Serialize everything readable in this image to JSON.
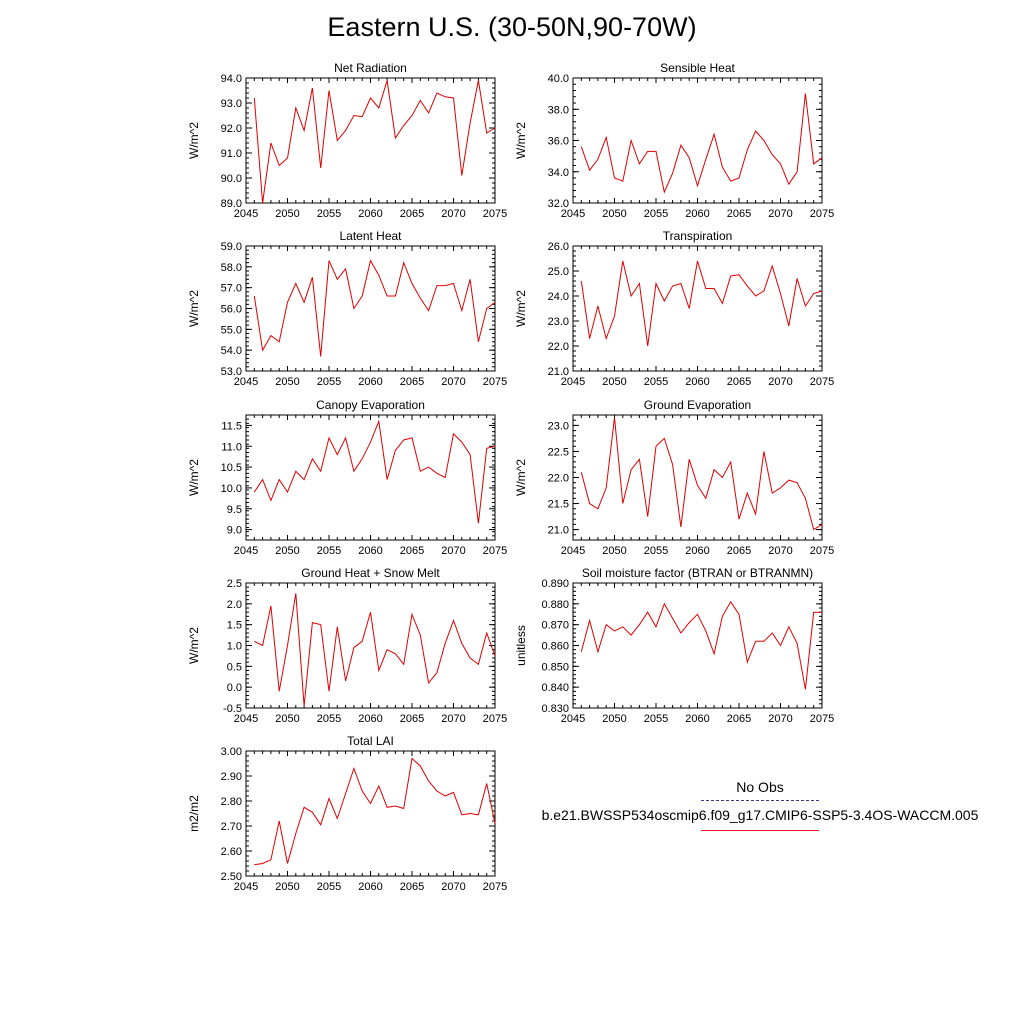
{
  "figure": {
    "title": "Eastern U.S. (30-50N,90-70W)",
    "line_color": "#e00000",
    "legend": {
      "obs_label": "No Obs",
      "obs_color": "#3a3a8c",
      "case_label": "b.e21.BWSSP534oscmip6.f09_g17.CMIP6-SSP5-3.4OS-WACCM.005",
      "case_color": "#e02020"
    }
  },
  "chart_data": [
    {
      "type": "line",
      "title": "Net Radiation",
      "ylabel": "W/m^2",
      "xlim": [
        2045,
        2075
      ],
      "ylim": [
        89.0,
        94.0
      ],
      "x_ticks": [
        2045,
        2050,
        2055,
        2060,
        2065,
        2070,
        2075
      ],
      "x_tick_labels": [
        "2045",
        "2050",
        "2055",
        "2060",
        "2065",
        "2070",
        "2075"
      ],
      "y_ticks": [
        89,
        90,
        91,
        92,
        93,
        94
      ],
      "y_tick_labels": [
        "89.0",
        "90.0",
        "91.0",
        "92.0",
        "93.0",
        "94.0"
      ],
      "series": [
        {
          "x": [
            2046,
            2047,
            2048,
            2049,
            2050,
            2051,
            2052,
            2053,
            2054,
            2055,
            2056,
            2057,
            2058,
            2059,
            2060,
            2061,
            2062,
            2063,
            2064,
            2065,
            2066,
            2067,
            2068,
            2069,
            2070,
            2071,
            2072,
            2073,
            2074,
            2075
          ],
          "values": [
            93.2,
            89.0,
            91.4,
            90.5,
            90.8,
            92.8,
            91.9,
            93.6,
            90.4,
            93.5,
            91.5,
            91.9,
            92.5,
            92.45,
            93.2,
            92.8,
            93.9,
            91.6,
            92.1,
            92.5,
            93.1,
            92.6,
            93.4,
            93.25,
            93.2,
            90.1,
            92.2,
            93.9,
            91.8,
            92.0
          ]
        }
      ]
    },
    {
      "type": "line",
      "title": "Sensible Heat",
      "ylabel": "W/m^2",
      "xlim": [
        2045,
        2075
      ],
      "ylim": [
        32.0,
        40.0
      ],
      "x_ticks": [
        2045,
        2050,
        2055,
        2060,
        2065,
        2070,
        2075
      ],
      "x_tick_labels": [
        "2045",
        "2050",
        "2055",
        "2060",
        "2065",
        "2070",
        "2075"
      ],
      "y_ticks": [
        32,
        34,
        36,
        38,
        40
      ],
      "y_tick_labels": [
        "32.0",
        "34.0",
        "36.0",
        "38.0",
        "40.0"
      ],
      "series": [
        {
          "x": [
            2046,
            2047,
            2048,
            2049,
            2050,
            2051,
            2052,
            2053,
            2054,
            2055,
            2056,
            2057,
            2058,
            2059,
            2060,
            2061,
            2062,
            2063,
            2064,
            2065,
            2066,
            2067,
            2068,
            2069,
            2070,
            2071,
            2072,
            2073,
            2074,
            2075
          ],
          "values": [
            35.6,
            34.1,
            34.8,
            36.2,
            33.6,
            33.4,
            36.0,
            34.5,
            35.3,
            35.3,
            32.7,
            33.9,
            35.7,
            34.9,
            33.1,
            34.8,
            36.4,
            34.3,
            33.4,
            33.6,
            35.4,
            36.6,
            36.0,
            35.1,
            34.5,
            33.2,
            34.0,
            39.0,
            34.5,
            34.9
          ]
        }
      ]
    },
    {
      "type": "line",
      "title": "Latent Heat",
      "ylabel": "W/m^2",
      "xlim": [
        2045,
        2075
      ],
      "ylim": [
        53.0,
        59.0
      ],
      "x_ticks": [
        2045,
        2050,
        2055,
        2060,
        2065,
        2070,
        2075
      ],
      "x_tick_labels": [
        "2045",
        "2050",
        "2055",
        "2060",
        "2065",
        "2070",
        "2075"
      ],
      "y_ticks": [
        53,
        54,
        55,
        56,
        57,
        58,
        59
      ],
      "y_tick_labels": [
        "53.0",
        "54.0",
        "55.0",
        "56.0",
        "57.0",
        "58.0",
        "59.0"
      ],
      "series": [
        {
          "x": [
            2046,
            2047,
            2048,
            2049,
            2050,
            2051,
            2052,
            2053,
            2054,
            2055,
            2056,
            2057,
            2058,
            2059,
            2060,
            2061,
            2062,
            2063,
            2064,
            2065,
            2066,
            2067,
            2068,
            2069,
            2070,
            2071,
            2072,
            2073,
            2074,
            2075
          ],
          "values": [
            56.6,
            54.0,
            54.7,
            54.4,
            56.3,
            57.2,
            56.3,
            57.5,
            53.7,
            58.3,
            57.4,
            57.9,
            56.0,
            56.6,
            58.3,
            57.6,
            56.6,
            56.6,
            58.2,
            57.2,
            56.5,
            55.9,
            57.1,
            57.1,
            57.2,
            55.9,
            57.4,
            54.4,
            56.0,
            56.3
          ]
        }
      ]
    },
    {
      "type": "line",
      "title": "Transpiration",
      "ylabel": "W/m^2",
      "xlim": [
        2045,
        2075
      ],
      "ylim": [
        21.0,
        26.0
      ],
      "x_ticks": [
        2045,
        2050,
        2055,
        2060,
        2065,
        2070,
        2075
      ],
      "x_tick_labels": [
        "2045",
        "2050",
        "2055",
        "2060",
        "2065",
        "2070",
        "2075"
      ],
      "y_ticks": [
        21,
        22,
        23,
        24,
        25,
        26
      ],
      "y_tick_labels": [
        "21.0",
        "22.0",
        "23.0",
        "24.0",
        "25.0",
        "26.0"
      ],
      "series": [
        {
          "x": [
            2046,
            2047,
            2048,
            2049,
            2050,
            2051,
            2052,
            2053,
            2054,
            2055,
            2056,
            2057,
            2058,
            2059,
            2060,
            2061,
            2062,
            2063,
            2064,
            2065,
            2066,
            2067,
            2068,
            2069,
            2070,
            2071,
            2072,
            2073,
            2074,
            2075
          ],
          "values": [
            24.6,
            22.3,
            23.6,
            22.3,
            23.2,
            25.4,
            24.0,
            24.5,
            22.0,
            24.5,
            23.8,
            24.4,
            24.5,
            23.5,
            25.4,
            24.3,
            24.3,
            23.7,
            24.8,
            24.85,
            24.4,
            24.0,
            24.2,
            25.2,
            24.1,
            22.8,
            24.7,
            23.6,
            24.1,
            24.2
          ]
        }
      ]
    },
    {
      "type": "line",
      "title": "Canopy Evaporation",
      "ylabel": "W/m^2",
      "xlim": [
        2045,
        2075
      ],
      "ylim": [
        8.75,
        11.75
      ],
      "x_ticks": [
        2045,
        2050,
        2055,
        2060,
        2065,
        2070,
        2075
      ],
      "x_tick_labels": [
        "2045",
        "2050",
        "2055",
        "2060",
        "2065",
        "2070",
        "2075"
      ],
      "y_ticks": [
        9.0,
        9.5,
        10.0,
        10.5,
        11.0,
        11.5
      ],
      "y_tick_labels": [
        "9.0",
        "9.5",
        "10.0",
        "10.5",
        "11.0",
        "11.5"
      ],
      "series": [
        {
          "x": [
            2046,
            2047,
            2048,
            2049,
            2050,
            2051,
            2052,
            2053,
            2054,
            2055,
            2056,
            2057,
            2058,
            2059,
            2060,
            2061,
            2062,
            2063,
            2064,
            2065,
            2066,
            2067,
            2068,
            2069,
            2070,
            2071,
            2072,
            2073,
            2074,
            2075
          ],
          "values": [
            9.9,
            10.2,
            9.7,
            10.2,
            9.9,
            10.4,
            10.2,
            10.7,
            10.4,
            11.2,
            10.8,
            11.2,
            10.4,
            10.7,
            11.1,
            11.6,
            10.2,
            10.9,
            11.15,
            11.2,
            10.4,
            10.5,
            10.35,
            10.25,
            11.3,
            11.1,
            10.8,
            9.15,
            10.95,
            11.0
          ]
        }
      ]
    },
    {
      "type": "line",
      "title": "Ground Evaporation",
      "ylabel": "W/m^2",
      "xlim": [
        2045,
        2075
      ],
      "ylim": [
        20.8,
        23.2
      ],
      "x_ticks": [
        2045,
        2050,
        2055,
        2060,
        2065,
        2070,
        2075
      ],
      "x_tick_labels": [
        "2045",
        "2050",
        "2055",
        "2060",
        "2065",
        "2070",
        "2075"
      ],
      "y_ticks": [
        21.0,
        21.5,
        22.0,
        22.5,
        23.0
      ],
      "y_tick_labels": [
        "21.0",
        "21.5",
        "22.0",
        "22.5",
        "23.0"
      ],
      "series": [
        {
          "x": [
            2046,
            2047,
            2048,
            2049,
            2050,
            2051,
            2052,
            2053,
            2054,
            2055,
            2056,
            2057,
            2058,
            2059,
            2060,
            2061,
            2062,
            2063,
            2064,
            2065,
            2066,
            2067,
            2068,
            2069,
            2070,
            2071,
            2072,
            2073,
            2074,
            2075
          ],
          "values": [
            22.1,
            21.5,
            21.4,
            21.8,
            23.15,
            21.5,
            22.15,
            22.35,
            21.25,
            22.6,
            22.75,
            22.25,
            21.05,
            22.35,
            21.85,
            21.6,
            22.15,
            22.0,
            22.3,
            21.2,
            21.7,
            21.3,
            22.5,
            21.7,
            21.8,
            21.95,
            21.9,
            21.6,
            21.0,
            21.1
          ]
        }
      ]
    },
    {
      "type": "line",
      "title": "Ground Heat + Snow Melt",
      "ylabel": "W/m^2",
      "xlim": [
        2045,
        2075
      ],
      "ylim": [
        -0.5,
        2.5
      ],
      "x_ticks": [
        2045,
        2050,
        2055,
        2060,
        2065,
        2070,
        2075
      ],
      "x_tick_labels": [
        "2045",
        "2050",
        "2055",
        "2060",
        "2065",
        "2070",
        "2075"
      ],
      "y_ticks": [
        -0.5,
        0.0,
        0.5,
        1.0,
        1.5,
        2.0,
        2.5
      ],
      "y_tick_labels": [
        "-0.5",
        "0.0",
        "0.5",
        "1.0",
        "1.5",
        "2.0",
        "2.5"
      ],
      "series": [
        {
          "x": [
            2046,
            2047,
            2048,
            2049,
            2050,
            2051,
            2052,
            2053,
            2054,
            2055,
            2056,
            2057,
            2058,
            2059,
            2060,
            2061,
            2062,
            2063,
            2064,
            2065,
            2066,
            2067,
            2068,
            2069,
            2070,
            2071,
            2072,
            2073,
            2074,
            2075
          ],
          "values": [
            1.1,
            1.0,
            1.95,
            -0.1,
            1.0,
            2.25,
            -0.45,
            1.55,
            1.5,
            -0.1,
            1.45,
            0.15,
            0.95,
            1.1,
            1.8,
            0.4,
            0.9,
            0.8,
            0.55,
            1.75,
            1.25,
            0.1,
            0.35,
            1.05,
            1.6,
            1.05,
            0.7,
            0.55,
            1.3,
            0.75
          ]
        }
      ]
    },
    {
      "type": "line",
      "title": "Soil moisture factor (BTRAN or BTRANMN)",
      "ylabel": "unitless",
      "xlim": [
        2045,
        2075
      ],
      "ylim": [
        0.83,
        0.89
      ],
      "x_ticks": [
        2045,
        2050,
        2055,
        2060,
        2065,
        2070,
        2075
      ],
      "x_tick_labels": [
        "2045",
        "2050",
        "2055",
        "2060",
        "2065",
        "2070",
        "2075"
      ],
      "y_ticks": [
        0.83,
        0.84,
        0.85,
        0.86,
        0.87,
        0.88,
        0.89
      ],
      "y_tick_labels": [
        "0.830",
        "0.840",
        "0.850",
        "0.860",
        "0.870",
        "0.880",
        "0.890"
      ],
      "series": [
        {
          "x": [
            2046,
            2047,
            2048,
            2049,
            2050,
            2051,
            2052,
            2053,
            2054,
            2055,
            2056,
            2057,
            2058,
            2059,
            2060,
            2061,
            2062,
            2063,
            2064,
            2065,
            2066,
            2067,
            2068,
            2069,
            2070,
            2071,
            2072,
            2073,
            2074,
            2075
          ],
          "values": [
            0.857,
            0.872,
            0.857,
            0.87,
            0.867,
            0.869,
            0.865,
            0.87,
            0.876,
            0.869,
            0.88,
            0.873,
            0.866,
            0.871,
            0.875,
            0.867,
            0.856,
            0.874,
            0.881,
            0.875,
            0.852,
            0.862,
            0.862,
            0.866,
            0.86,
            0.869,
            0.861,
            0.839,
            0.876,
            0.876
          ]
        }
      ]
    },
    {
      "type": "line",
      "title": "Total LAI",
      "ylabel": "m2/m2",
      "xlim": [
        2045,
        2075
      ],
      "ylim": [
        2.5,
        3.0
      ],
      "x_ticks": [
        2045,
        2050,
        2055,
        2060,
        2065,
        2070,
        2075
      ],
      "x_tick_labels": [
        "2045",
        "2050",
        "2055",
        "2060",
        "2065",
        "2070",
        "2075"
      ],
      "y_ticks": [
        2.5,
        2.6,
        2.7,
        2.8,
        2.9,
        3.0
      ],
      "y_tick_labels": [
        "2.50",
        "2.60",
        "2.70",
        "2.80",
        "2.90",
        "3.00"
      ],
      "series": [
        {
          "x": [
            2046,
            2047,
            2048,
            2049,
            2050,
            2051,
            2052,
            2053,
            2054,
            2055,
            2056,
            2057,
            2058,
            2059,
            2060,
            2061,
            2062,
            2063,
            2064,
            2065,
            2066,
            2067,
            2068,
            2069,
            2070,
            2071,
            2072,
            2073,
            2074,
            2075
          ],
          "values": [
            2.545,
            2.55,
            2.565,
            2.72,
            2.55,
            2.67,
            2.775,
            2.755,
            2.705,
            2.81,
            2.73,
            2.83,
            2.93,
            2.84,
            2.79,
            2.86,
            2.775,
            2.78,
            2.77,
            2.97,
            2.94,
            2.88,
            2.84,
            2.82,
            2.835,
            2.745,
            2.75,
            2.745,
            2.87,
            2.71
          ]
        }
      ]
    }
  ]
}
